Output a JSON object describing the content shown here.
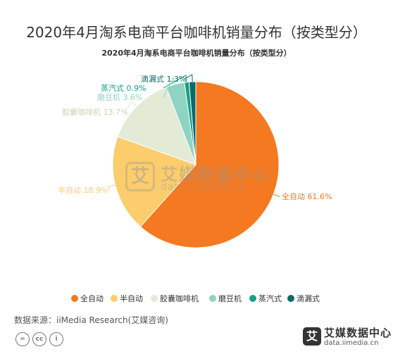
{
  "page": {
    "title": "2020年4月淘系电商平台咖啡机销量分布（按类型分）",
    "source": "数据来源：iiMedia Research(艾媒咨询)",
    "watermark": {
      "name": "艾媒数据中心",
      "url": "data.iimedia.cn",
      "badge": "艾"
    },
    "logo": {
      "name": "艾媒数据中心",
      "url": "data.iimedia.cn",
      "badge": "艾"
    },
    "cc_icons": [
      "=",
      "cc",
      "i"
    ]
  },
  "chart_data": {
    "type": "pie",
    "title": "2020年4月淘系电商平台咖啡机销量分布（按类型分）",
    "legend_position": "bottom",
    "series": [
      {
        "name": "全自动",
        "value": 61.6,
        "label": "全自动 61.6%",
        "color": "#f47920"
      },
      {
        "name": "半自动",
        "value": 18.9,
        "label": "半自动 18.9%",
        "color": "#fbcd6c"
      },
      {
        "name": "胶囊咖啡机",
        "value": 13.7,
        "label": "胶囊咖啡机 13.7%",
        "color": "#e3ead6"
      },
      {
        "name": "磨豆机",
        "value": 3.6,
        "label": "磨豆机 3.6%",
        "color": "#8fd4c3"
      },
      {
        "name": "蒸汽式",
        "value": 0.9,
        "label": "蒸汽式 0.9%",
        "color": "#16a08a"
      },
      {
        "name": "滴漏式",
        "value": 1.3,
        "label": "滴漏式 1.3%",
        "color": "#0e6a66"
      }
    ]
  }
}
